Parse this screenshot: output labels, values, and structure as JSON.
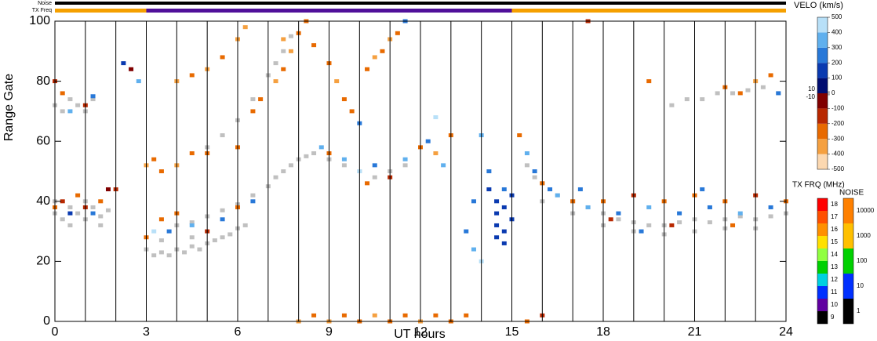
{
  "chart_data": {
    "type": "range-time",
    "x_label": "UT hours",
    "y_label": "Range Gate",
    "xlim": [
      0,
      24
    ],
    "xticks": [
      0,
      3,
      6,
      9,
      12,
      15,
      18,
      21,
      24
    ],
    "ylim": [
      0,
      100
    ],
    "yticks": [
      0,
      20,
      40,
      60,
      80,
      100
    ],
    "noise_bar_label": "Noise",
    "tx_bar_label": "TX Freq",
    "tx_segments": [
      {
        "start": 0,
        "end": 3,
        "color": "#f5a000"
      },
      {
        "start": 3,
        "end": 15,
        "color": "#50109a"
      },
      {
        "start": 15,
        "end": 24,
        "color": "#f5a000"
      }
    ],
    "velo_colorbar": {
      "title": "VELO (km/s)",
      "vlim": [
        -500,
        500
      ],
      "colors": [
        "#fcd8b0",
        "#f5a040",
        "#e86a00",
        "#b82800",
        "#800000",
        "#000c70",
        "#0a3ab0",
        "#2878d8",
        "#60b0ee",
        "#b8e0f8"
      ],
      "ticks": [
        500,
        400,
        300,
        200,
        100,
        10,
        0,
        -10,
        -100,
        -200,
        -300,
        -400,
        -500
      ]
    },
    "tx_colorbar": {
      "title": "TX FRQ (MHz)",
      "ticks": [
        18,
        17,
        16,
        15,
        14,
        13,
        12,
        11,
        10,
        9
      ],
      "colors": [
        "#ff0000",
        "#ff5000",
        "#ff9000",
        "#ffe000",
        "#90ff40",
        "#00d000",
        "#00d0e0",
        "#0030ff",
        "#6000a0",
        "#000000"
      ]
    },
    "noise_colorbar": {
      "title": "NOISE",
      "ticks": [
        10000,
        1000,
        100,
        10,
        1
      ],
      "colors": [
        "#ff8000",
        "#ffc000",
        "#00d000",
        "#0030ff",
        "#000000"
      ]
    },
    "ground_scatter_color": "#c0c0c0",
    "ground_scatter": [
      [
        0,
        36
      ],
      [
        0.25,
        34
      ],
      [
        0.5,
        38
      ],
      [
        0.75,
        36
      ],
      [
        1,
        34
      ],
      [
        1.25,
        38
      ],
      [
        1.5,
        35
      ],
      [
        1.75,
        37
      ],
      [
        0,
        40
      ],
      [
        0.5,
        32
      ],
      [
        1,
        40
      ],
      [
        1.5,
        32
      ],
      [
        0,
        72
      ],
      [
        0.25,
        70
      ],
      [
        0.5,
        74
      ],
      [
        0.75,
        72
      ],
      [
        1,
        70
      ],
      [
        1.25,
        74
      ],
      [
        3,
        24
      ],
      [
        3.25,
        22
      ],
      [
        3.5,
        23
      ],
      [
        3.75,
        22
      ],
      [
        4,
        24
      ],
      [
        4.25,
        23
      ],
      [
        4.5,
        25
      ],
      [
        4.75,
        24
      ],
      [
        5,
        26
      ],
      [
        5.25,
        27
      ],
      [
        5.5,
        28
      ],
      [
        5.75,
        29
      ],
      [
        6,
        31
      ],
      [
        6.25,
        32
      ],
      [
        3.5,
        27
      ],
      [
        4.5,
        28
      ],
      [
        4,
        32
      ],
      [
        4.5,
        33
      ],
      [
        5,
        35
      ],
      [
        5.5,
        37
      ],
      [
        6,
        39
      ],
      [
        6.5,
        42
      ],
      [
        7,
        45
      ],
      [
        7.25,
        48
      ],
      [
        7.5,
        50
      ],
      [
        7.75,
        52
      ],
      [
        8,
        54
      ],
      [
        8.25,
        55
      ],
      [
        5,
        58
      ],
      [
        5.5,
        62
      ],
      [
        6,
        67
      ],
      [
        6.5,
        74
      ],
      [
        7,
        82
      ],
      [
        7.25,
        86
      ],
      [
        7.5,
        90
      ],
      [
        7.75,
        95
      ],
      [
        8.5,
        56
      ],
      [
        9,
        54
      ],
      [
        9.5,
        52
      ],
      [
        10,
        50
      ],
      [
        10.5,
        48
      ],
      [
        11,
        50
      ],
      [
        11.5,
        52
      ],
      [
        15.5,
        52
      ],
      [
        15.75,
        48
      ],
      [
        16,
        46
      ],
      [
        16.25,
        44
      ],
      [
        16.5,
        42
      ],
      [
        17,
        40
      ],
      [
        17.5,
        38
      ],
      [
        18,
        36
      ],
      [
        18.5,
        34
      ],
      [
        19,
        33
      ],
      [
        19.5,
        32
      ],
      [
        20,
        32
      ],
      [
        20.5,
        33
      ],
      [
        21,
        34
      ],
      [
        21.5,
        33
      ],
      [
        22,
        34
      ],
      [
        22.5,
        35
      ],
      [
        23,
        34
      ],
      [
        23.5,
        35
      ],
      [
        24,
        36
      ],
      [
        16,
        40
      ],
      [
        17,
        36
      ],
      [
        18,
        32
      ],
      [
        19,
        30
      ],
      [
        20,
        29
      ],
      [
        21,
        30
      ],
      [
        22,
        31
      ],
      [
        23,
        31
      ],
      [
        20.25,
        72
      ],
      [
        20.75,
        74
      ],
      [
        21.25,
        74
      ],
      [
        21.75,
        76
      ],
      [
        22.25,
        76
      ],
      [
        22.75,
        77
      ],
      [
        23.25,
        78
      ],
      [
        23.75,
        76
      ]
    ],
    "velocity_cells": [
      [
        0,
        38,
        -300
      ],
      [
        0.25,
        40,
        -200
      ],
      [
        0.5,
        36,
        150
      ],
      [
        0.75,
        42,
        -250
      ],
      [
        1,
        38,
        -150
      ],
      [
        1.25,
        36,
        250
      ],
      [
        1.5,
        40,
        -300
      ],
      [
        1.75,
        44,
        -100
      ],
      [
        0,
        80,
        -200
      ],
      [
        0.25,
        76,
        -250
      ],
      [
        0.5,
        70,
        300
      ],
      [
        1,
        72,
        -150
      ],
      [
        1.25,
        75,
        200
      ],
      [
        2,
        44,
        -200
      ],
      [
        2.25,
        86,
        150
      ],
      [
        2.5,
        84,
        -100
      ],
      [
        2.75,
        80,
        300
      ],
      [
        3,
        28,
        -300
      ],
      [
        3.25,
        30,
        400
      ],
      [
        3.5,
        34,
        -250
      ],
      [
        3.75,
        30,
        200
      ],
      [
        4,
        36,
        -300
      ],
      [
        4.5,
        32,
        350
      ],
      [
        5,
        30,
        -200
      ],
      [
        5.5,
        34,
        250
      ],
      [
        6,
        38,
        -300
      ],
      [
        6.5,
        40,
        200
      ],
      [
        3,
        52,
        -350
      ],
      [
        3.25,
        54,
        -300
      ],
      [
        3.5,
        50,
        -250
      ],
      [
        4,
        52,
        -350
      ],
      [
        4.5,
        56,
        -300
      ],
      [
        5,
        56,
        -250
      ],
      [
        6,
        58,
        -300
      ],
      [
        4,
        80,
        -350
      ],
      [
        4.5,
        82,
        -300
      ],
      [
        5,
        84,
        -350
      ],
      [
        5.5,
        88,
        -300
      ],
      [
        6,
        94,
        -350
      ],
      [
        6.25,
        98,
        -400
      ],
      [
        6.5,
        70,
        -250
      ],
      [
        6.75,
        74,
        -300
      ],
      [
        7.25,
        80,
        -350
      ],
      [
        7.5,
        84,
        -300
      ],
      [
        7.75,
        90,
        -350
      ],
      [
        8,
        96,
        -300
      ],
      [
        7.5,
        94,
        -400
      ],
      [
        8.25,
        100,
        -300
      ],
      [
        8.5,
        92,
        -250
      ],
      [
        9,
        86,
        -300
      ],
      [
        9.25,
        80,
        -350
      ],
      [
        9.5,
        74,
        -300
      ],
      [
        9.75,
        70,
        -250
      ],
      [
        10,
        66,
        250
      ],
      [
        10.25,
        84,
        -300
      ],
      [
        10.5,
        88,
        -350
      ],
      [
        10.75,
        90,
        -300
      ],
      [
        11,
        94,
        -350
      ],
      [
        11.25,
        96,
        -300
      ],
      [
        11.5,
        100,
        200
      ],
      [
        8.75,
        58,
        350
      ],
      [
        9,
        56,
        -250
      ],
      [
        9.5,
        54,
        300
      ],
      [
        10,
        50,
        400
      ],
      [
        10.25,
        46,
        -300
      ],
      [
        10.5,
        52,
        250
      ],
      [
        11,
        48,
        -200
      ],
      [
        11.5,
        54,
        350
      ],
      [
        12,
        58,
        -300
      ],
      [
        12.25,
        60,
        250
      ],
      [
        12.5,
        56,
        -350
      ],
      [
        12.75,
        52,
        300
      ],
      [
        13,
        62,
        -250
      ],
      [
        12.5,
        68,
        400
      ],
      [
        13.5,
        30,
        250
      ],
      [
        13.75,
        24,
        350
      ],
      [
        14,
        20,
        400
      ],
      [
        13.75,
        40,
        200
      ],
      [
        14,
        62,
        300
      ],
      [
        14.25,
        50,
        200
      ],
      [
        14.25,
        44,
        100
      ],
      [
        14.5,
        40,
        100
      ],
      [
        14.5,
        36,
        100
      ],
      [
        14.5,
        32,
        100
      ],
      [
        14.75,
        38,
        100
      ],
      [
        14.75,
        30,
        100
      ],
      [
        14.75,
        26,
        100
      ],
      [
        15,
        34,
        100
      ],
      [
        15,
        42,
        100
      ],
      [
        14.5,
        28,
        100
      ],
      [
        14.75,
        44,
        200
      ],
      [
        15.25,
        62,
        -250
      ],
      [
        15.5,
        56,
        300
      ],
      [
        15.75,
        50,
        200
      ],
      [
        16,
        46,
        -300
      ],
      [
        16.25,
        44,
        250
      ],
      [
        16.5,
        42,
        300
      ],
      [
        17,
        40,
        -250
      ],
      [
        17.5,
        38,
        300
      ],
      [
        18,
        40,
        -300
      ],
      [
        18.5,
        36,
        250
      ],
      [
        19,
        42,
        -200
      ],
      [
        19.5,
        38,
        300
      ],
      [
        20,
        40,
        -250
      ],
      [
        20.5,
        36,
        200
      ],
      [
        21,
        42,
        -300
      ],
      [
        21.5,
        38,
        250
      ],
      [
        22,
        40,
        -250
      ],
      [
        22.5,
        36,
        300
      ],
      [
        23,
        42,
        -200
      ],
      [
        23.5,
        38,
        250
      ],
      [
        24,
        40,
        -300
      ],
      [
        17.25,
        44,
        250
      ],
      [
        18.25,
        34,
        -200
      ],
      [
        19.25,
        30,
        250
      ],
      [
        20.25,
        32,
        -200
      ],
      [
        21.25,
        44,
        200
      ],
      [
        22.25,
        32,
        -250
      ],
      [
        22,
        78,
        -300
      ],
      [
        22.5,
        76,
        -250
      ],
      [
        23,
        80,
        -350
      ],
      [
        23.5,
        82,
        -300
      ],
      [
        23.75,
        76,
        200
      ],
      [
        19.5,
        80,
        -250
      ],
      [
        17.5,
        100,
        -200
      ],
      [
        8,
        0,
        -350
      ],
      [
        8.5,
        2,
        -300
      ],
      [
        9,
        0,
        -350
      ],
      [
        9.5,
        2,
        -250
      ],
      [
        10,
        0,
        -300
      ],
      [
        10.5,
        2,
        -350
      ],
      [
        11,
        0,
        -300
      ],
      [
        11.5,
        2,
        -250
      ],
      [
        12,
        0,
        -350
      ],
      [
        12.5,
        2,
        -300
      ],
      [
        13,
        0,
        -250
      ],
      [
        13.5,
        2,
        -300
      ],
      [
        15.5,
        0,
        -250
      ],
      [
        16,
        2,
        -200
      ]
    ]
  }
}
